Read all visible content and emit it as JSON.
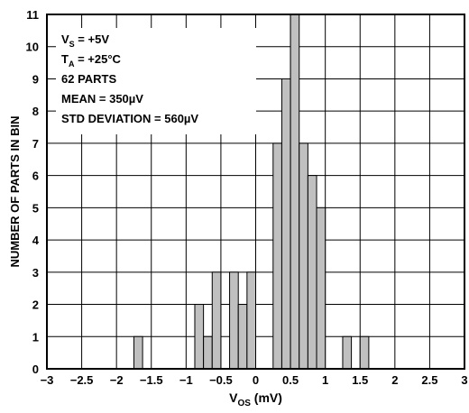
{
  "chart_data": {
    "type": "bar",
    "xlabel": {
      "main": "V",
      "sub": "OS",
      "unit": " (mV)"
    },
    "ylabel": "NUMBER OF PARTS IN BIN",
    "xlim": [
      -3,
      3
    ],
    "ylim": [
      0,
      11
    ],
    "grid": true,
    "bin_width": 0.125,
    "x_ticks": [
      "−3",
      "−2.5",
      "−2",
      "−1.5",
      "−1",
      "−0.5",
      "0",
      "0.5",
      "1",
      "1.5",
      "2",
      "2.5",
      "3"
    ],
    "x_tick_values": [
      -3,
      -2.5,
      -2,
      -1.5,
      -1,
      -0.5,
      0,
      0.5,
      1,
      1.5,
      2,
      2.5,
      3
    ],
    "y_ticks": [
      "0",
      "1",
      "2",
      "3",
      "4",
      "5",
      "6",
      "7",
      "8",
      "9",
      "10",
      "11"
    ],
    "y_tick_values": [
      0,
      1,
      2,
      3,
      4,
      5,
      6,
      7,
      8,
      9,
      10,
      11
    ],
    "bins": [
      {
        "x": -1.75,
        "count": 1
      },
      {
        "x": -0.875,
        "count": 2
      },
      {
        "x": -0.75,
        "count": 1
      },
      {
        "x": -0.625,
        "count": 3
      },
      {
        "x": -0.375,
        "count": 3
      },
      {
        "x": -0.25,
        "count": 2
      },
      {
        "x": -0.125,
        "count": 3
      },
      {
        "x": 0.25,
        "count": 7
      },
      {
        "x": 0.375,
        "count": 9
      },
      {
        "x": 0.5,
        "count": 11
      },
      {
        "x": 0.625,
        "count": 7
      },
      {
        "x": 0.75,
        "count": 6
      },
      {
        "x": 0.875,
        "count": 5
      },
      {
        "x": 1.25,
        "count": 1
      },
      {
        "x": 1.5,
        "count": 1
      }
    ],
    "annotations": [
      {
        "main": "V",
        "sub": "S",
        "rest": " = +5V"
      },
      {
        "main": "T",
        "sub": "A",
        "rest": " = +25°C"
      },
      {
        "main": "62 PARTS",
        "sub": "",
        "rest": ""
      },
      {
        "main": "MEAN = 350µV",
        "sub": "",
        "rest": ""
      },
      {
        "main": "STD DEVIATION = 560µV",
        "sub": "",
        "rest": ""
      }
    ],
    "bar_color": "#c0c0c0",
    "bar_edge_color": "#000000",
    "grid_color": "#000000"
  }
}
